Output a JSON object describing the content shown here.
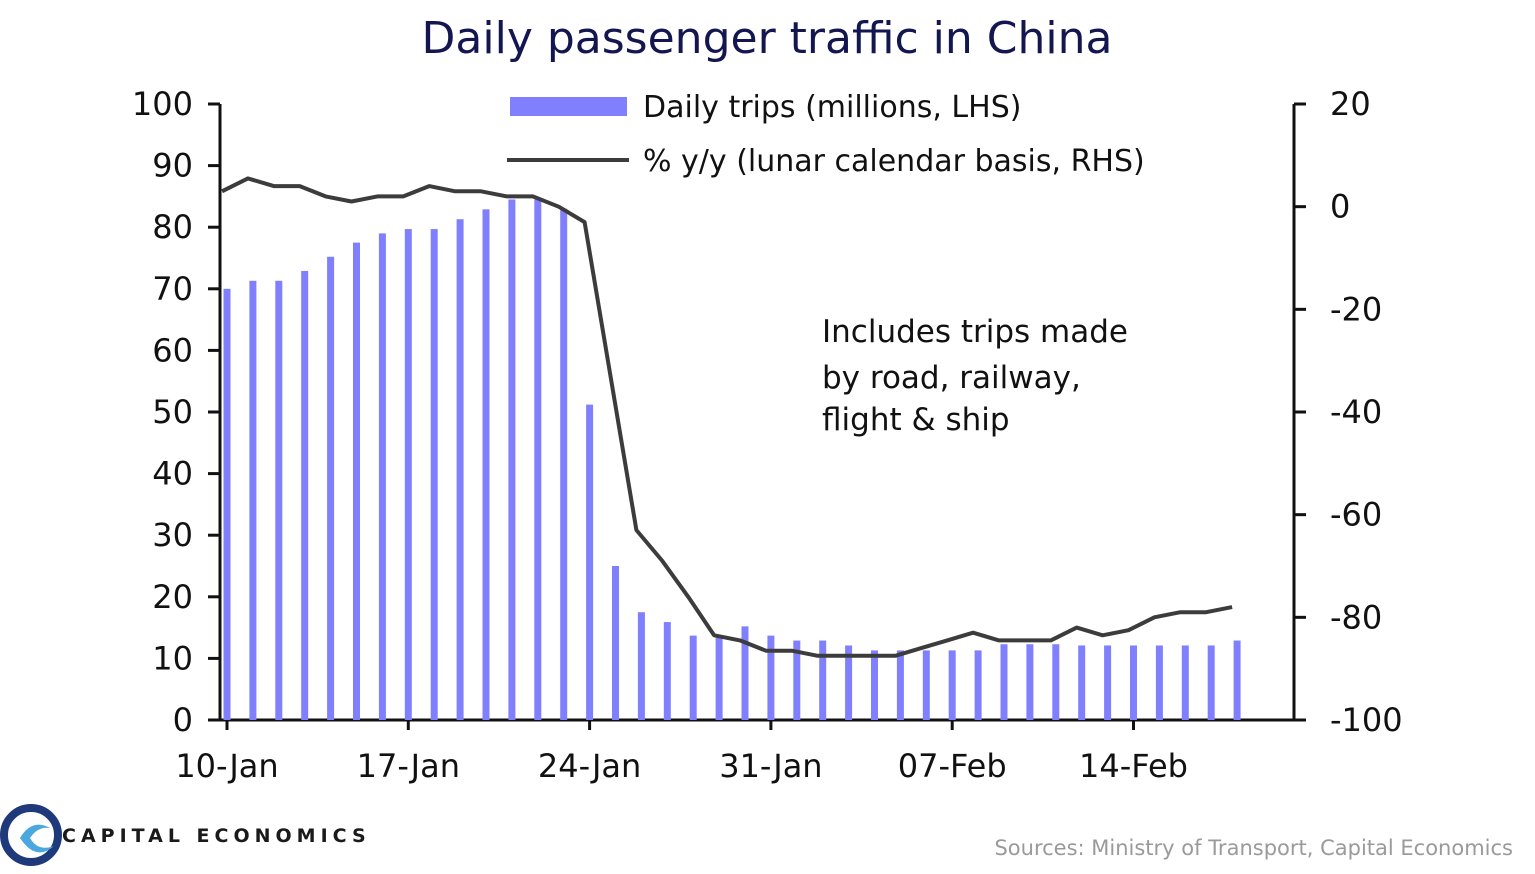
{
  "colors": {
    "bar": "#8080ff",
    "line": "#3c3c3c",
    "axis": "#111111",
    "title": "#14174f",
    "source": "#9a9a9a",
    "logo_primary": "#1f3a7a",
    "logo_secondary": "#4aa7e0"
  },
  "chart_data": {
    "type": "bar",
    "title": "Daily passenger traffic in China",
    "xlabel": "",
    "ylabel_left": "",
    "ylabel_right": "",
    "ylim_left": [
      0,
      100
    ],
    "ylim_right": [
      -100,
      20
    ],
    "yticks_left": [
      "0",
      "10",
      "20",
      "30",
      "40",
      "50",
      "60",
      "70",
      "80",
      "90",
      "100"
    ],
    "yticks_right": [
      "-100",
      "-80",
      "-60",
      "-40",
      "-20",
      "0",
      "20"
    ],
    "xticks": [
      "10-Jan",
      "17-Jan",
      "24-Jan",
      "31-Jan",
      "07-Feb",
      "14-Feb"
    ],
    "legend_position": "top",
    "series": [
      {
        "name": "Daily trips (millions, LHS)",
        "type": "bar",
        "axis": "left",
        "x": [
          "10-Jan",
          "11-Jan",
          "12-Jan",
          "13-Jan",
          "14-Jan",
          "15-Jan",
          "16-Jan",
          "17-Jan",
          "18-Jan",
          "19-Jan",
          "20-Jan",
          "21-Jan",
          "22-Jan",
          "23-Jan",
          "24-Jan",
          "25-Jan",
          "26-Jan",
          "27-Jan",
          "28-Jan",
          "29-Jan",
          "30-Jan",
          "31-Jan",
          "01-Feb",
          "02-Feb",
          "03-Feb",
          "04-Feb",
          "05-Feb",
          "06-Feb",
          "07-Feb",
          "08-Feb",
          "09-Feb",
          "10-Feb",
          "11-Feb",
          "12-Feb",
          "13-Feb",
          "14-Feb",
          "15-Feb",
          "16-Feb",
          "17-Feb",
          "18-Feb"
        ],
        "values": [
          70,
          71.3,
          71.3,
          72.9,
          75.2,
          77.5,
          79,
          79.7,
          79.7,
          81.3,
          82.9,
          84.5,
          84.5,
          83,
          51.2,
          25,
          17.5,
          15.9,
          13.7,
          13.7,
          15.2,
          13.7,
          12.9,
          12.9,
          12.1,
          11.3,
          11.3,
          11.3,
          11.3,
          11.3,
          12.3,
          12.3,
          12.3,
          12.1,
          12.1,
          12.1,
          12.1,
          12.1,
          12.1,
          12.9
        ]
      },
      {
        "name": "% y/y (lunar calendar basis, RHS)",
        "type": "line",
        "axis": "right",
        "x": [
          "10-Jan",
          "11-Jan",
          "12-Jan",
          "13-Jan",
          "14-Jan",
          "15-Jan",
          "16-Jan",
          "17-Jan",
          "18-Jan",
          "19-Jan",
          "20-Jan",
          "21-Jan",
          "22-Jan",
          "23-Jan",
          "24-Jan",
          "25-Jan",
          "26-Jan",
          "27-Jan",
          "28-Jan",
          "29-Jan",
          "30-Jan",
          "31-Jan",
          "01-Feb",
          "02-Feb",
          "03-Feb",
          "04-Feb",
          "05-Feb",
          "06-Feb",
          "07-Feb",
          "08-Feb",
          "09-Feb",
          "10-Feb",
          "11-Feb",
          "12-Feb",
          "13-Feb",
          "14-Feb",
          "15-Feb",
          "16-Feb",
          "17-Feb",
          "18-Feb"
        ],
        "values": [
          3,
          5.5,
          4,
          4,
          2,
          1,
          2,
          2,
          4,
          3,
          3,
          2,
          2,
          0,
          -3,
          -33,
          -63,
          -69,
          -76,
          -83.5,
          -84.5,
          -86.5,
          -86.5,
          -87.5,
          -87.5,
          -87.5,
          -87.5,
          -86,
          -84.5,
          -83,
          -84.5,
          -84.5,
          -84.5,
          -82,
          -83.5,
          -82.5,
          -80,
          -79,
          -79,
          -78
        ]
      }
    ],
    "annotation": [
      "Includes  trips  made",
      "by  road,  railway,",
      "flight  & ship"
    ],
    "source": "Sources: Ministry of Transport, Capital Economics"
  },
  "logo": {
    "text": "CAPITAL ECONOMICS"
  }
}
